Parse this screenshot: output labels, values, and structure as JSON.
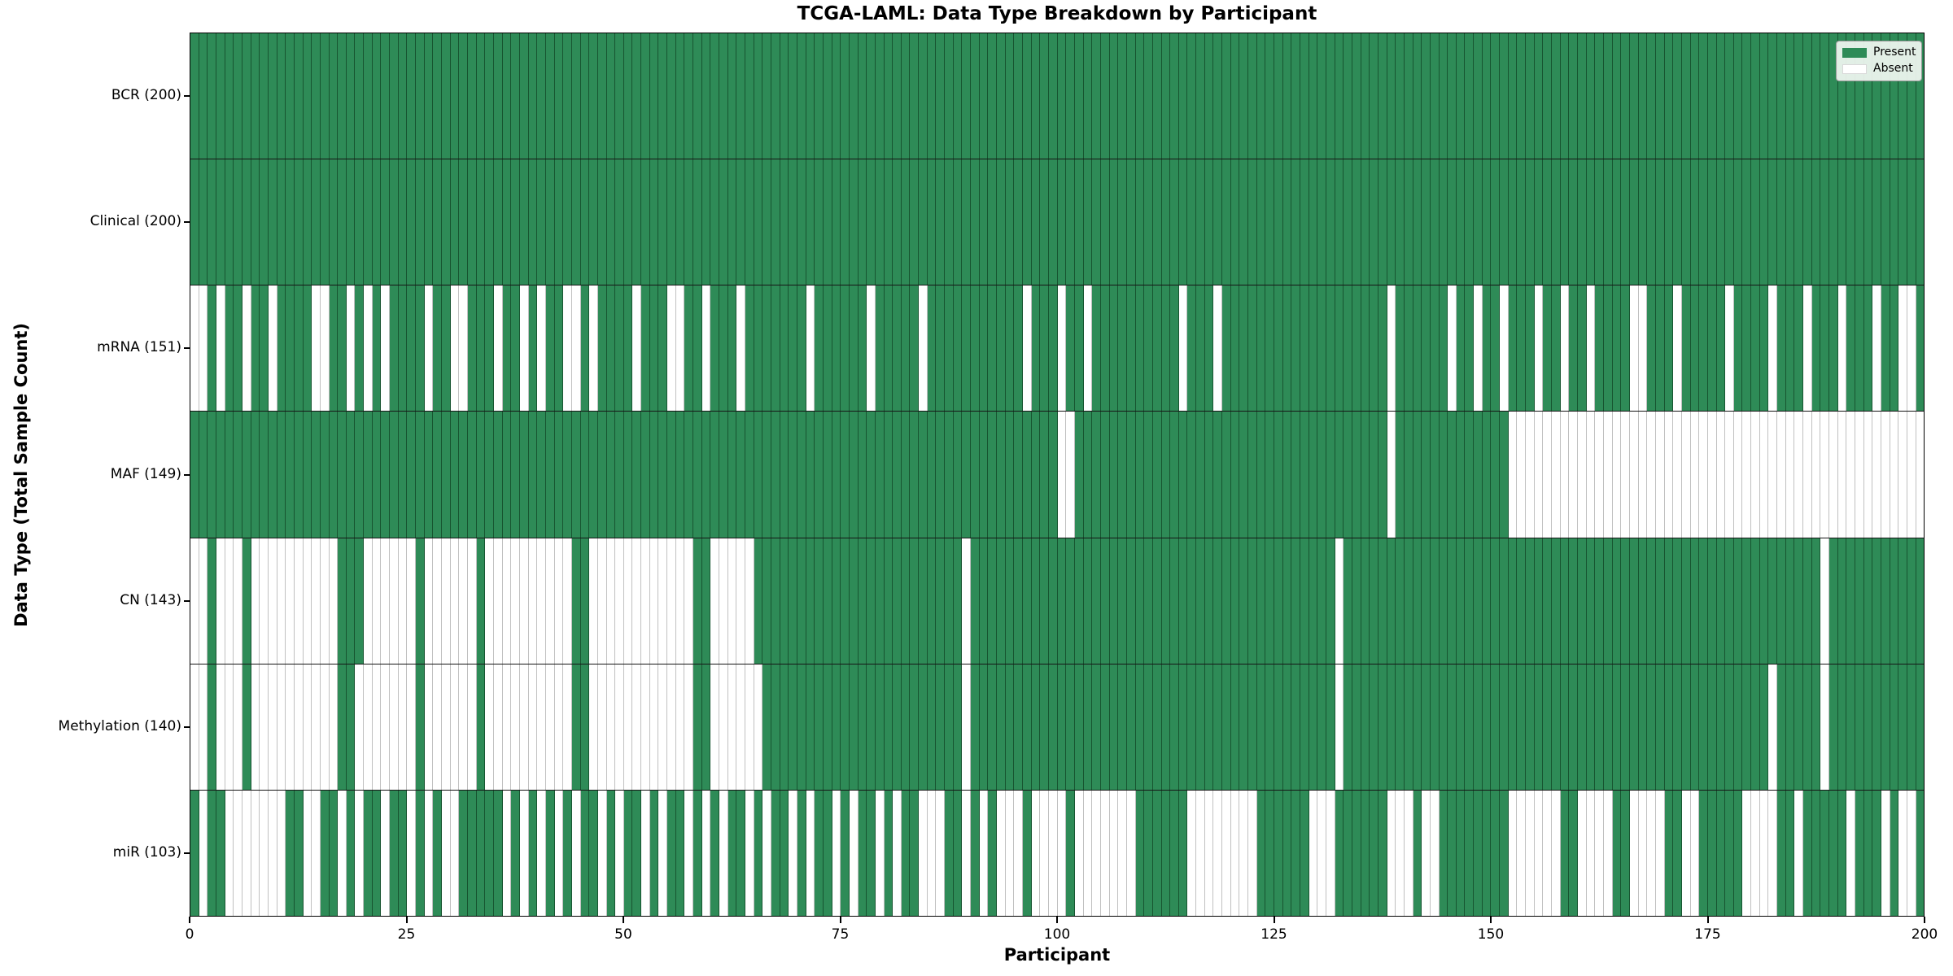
{
  "title": "TCGA-LAML: Data Type Breakdown by Participant",
  "xlabel": "Participant",
  "ylabel": "Data Type (Total Sample Count)",
  "legend": {
    "present_label": "Present",
    "absent_label": "Absent"
  },
  "colors": {
    "present": "#2e8b57",
    "absent": "#ffffff",
    "row_divider": "#161616",
    "axis": "#000000"
  },
  "x_ticks": [
    0,
    25,
    50,
    75,
    100,
    125,
    150,
    175,
    200
  ],
  "n_participants": 200,
  "chart_data": {
    "type": "heatmap",
    "x_axis": {
      "label": "Participant",
      "range": [
        0,
        200
      ],
      "ticks": [
        0,
        25,
        50,
        75,
        100,
        125,
        150,
        175,
        200
      ]
    },
    "y_axis": {
      "label": "Data Type (Total Sample Count)"
    },
    "legend_position": "upper right",
    "encoding": {
      "1": "Present",
      "0": "Absent"
    },
    "rows": [
      {
        "label": "BCR (200)",
        "name": "BCR",
        "total": 200,
        "pattern": [
          "11111111111111111111",
          "11111111111111111111",
          "11111111111111111111",
          "11111111111111111111",
          "11111111111111111111",
          "11111111111111111111",
          "11111111111111111111",
          "11111111111111111111",
          "11111111111111111111",
          "11111111111111111111"
        ]
      },
      {
        "label": "Clinical (200)",
        "name": "Clinical",
        "total": 200,
        "pattern": [
          "11111111111111111111",
          "11111111111111111111",
          "11111111111111111111",
          "11111111111111111111",
          "11111111111111111111",
          "11111111111111111111",
          "11111111111111111111",
          "11111111111111111111",
          "11111111111111111111",
          "11111111111111111111"
        ]
      },
      {
        "label": "mRNA (151)",
        "name": "mRNA",
        "total": 151,
        "pattern": [
          "00101101101111001101",
          "01011110110011101101",
          "01100101111011100110",
          "11101111111011111101",
          "11110111111111110111",
          "01101111111111011101",
          "11111111111111111101",
          "11111011011011101101",
          "10111100111011111011",
          "11011101110111011001"
        ]
      },
      {
        "label": "MAF (149)",
        "name": "MAF",
        "total": 149,
        "pattern": [
          "11111111111111111111",
          "11111111111111111111",
          "11111111111111111111",
          "11111111111111111111",
          "11111111111111111111",
          "00111111111111111111",
          "11111111111111111101",
          "11111111111100000000",
          "00000000000000000000",
          "00000000000000000000"
        ]
      },
      {
        "label": "CN (143)",
        "name": "CN",
        "total": 143,
        "pattern": [
          "00100010000000000111",
          "00000010000001000000",
          "00001100000000000011",
          "00000111111111111111",
          "11111111101111111111",
          "11111111111111111111",
          "11111111111101111111",
          "11111111111111111111",
          "11111111111111111111",
          "11111111011111111111"
        ]
      },
      {
        "label": "Methylation (140)",
        "name": "Methylation",
        "total": 140,
        "pattern": [
          "00100010000000000110",
          "00000010000001000000",
          "00001100000000000011",
          "00000011111111111111",
          "11111111101111111111",
          "11111111111111111111",
          "11111111111101111111",
          "11111111111111111111",
          "11111111111111111111",
          "11011111011111111111"
        ]
      },
      {
        "label": "miR (103)",
        "name": "miR",
        "total": 103,
        "pattern": [
          "10110000000110011010",
          "11011010100111110101",
          "01010110101101011010",
          "10110101101011010110",
          "10110001101010001000",
          "01000000011111100000",
          "00011111100011111100",
          "01001111111100000011",
          "00001100001100111110",
          "00011011111011101001"
        ]
      }
    ]
  }
}
